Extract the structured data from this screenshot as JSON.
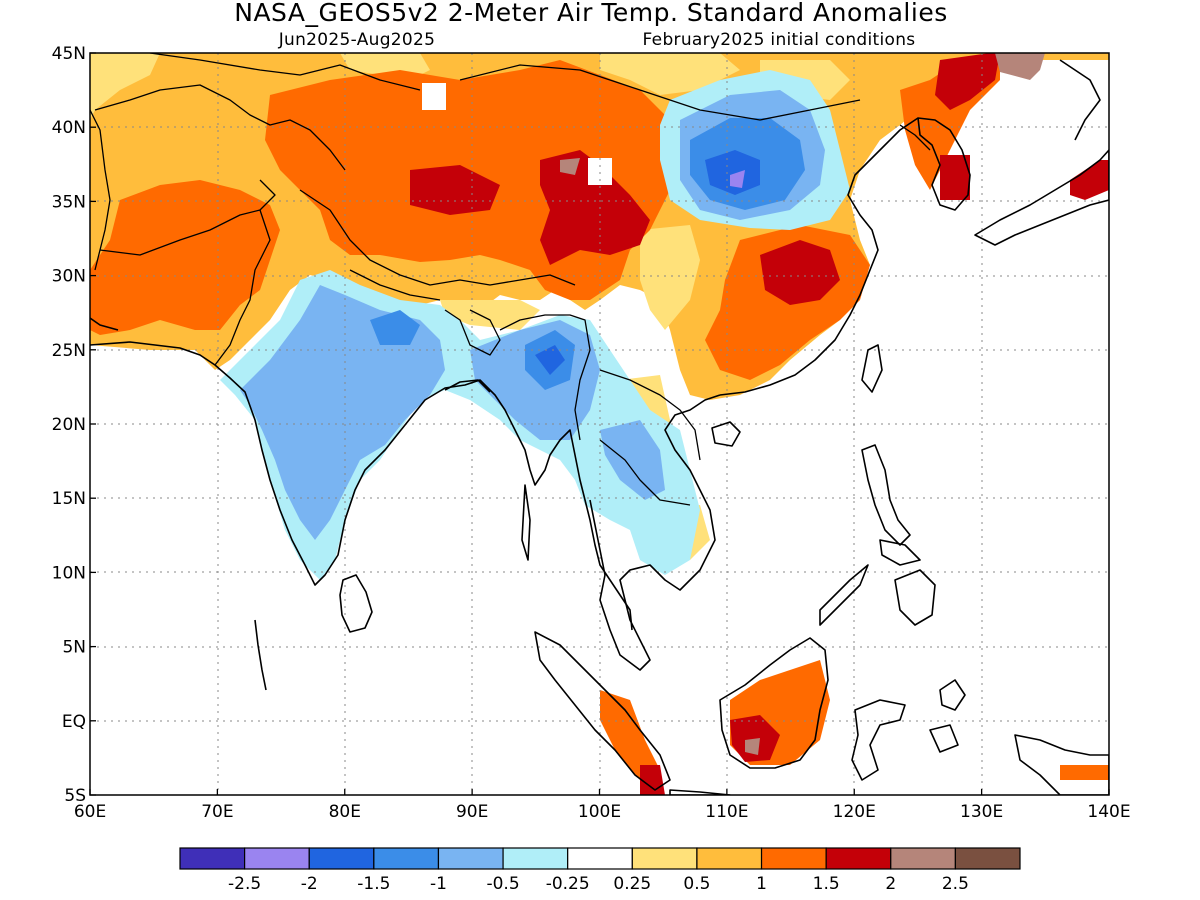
{
  "title": "NASA_GEOS5v2 2-Meter Air Temp. Standard Anomalies",
  "subtitle_left": "Jun2025-Aug2025",
  "subtitle_right": "February2025 initial conditions",
  "map": {
    "lon_range": [
      60,
      140
    ],
    "lat_range": [
      -5,
      45
    ],
    "x_ticks": [
      {
        "lon": 60,
        "label": "60E"
      },
      {
        "lon": 70,
        "label": "70E"
      },
      {
        "lon": 80,
        "label": "80E"
      },
      {
        "lon": 90,
        "label": "90E"
      },
      {
        "lon": 100,
        "label": "100E"
      },
      {
        "lon": 110,
        "label": "110E"
      },
      {
        "lon": 120,
        "label": "120E"
      },
      {
        "lon": 130,
        "label": "130E"
      },
      {
        "lon": 140,
        "label": "140E"
      }
    ],
    "y_ticks": [
      {
        "lat": 45,
        "label": "45N"
      },
      {
        "lat": 40,
        "label": "40N"
      },
      {
        "lat": 35,
        "label": "35N"
      },
      {
        "lat": 30,
        "label": "30N"
      },
      {
        "lat": 25,
        "label": "25N"
      },
      {
        "lat": 20,
        "label": "20N"
      },
      {
        "lat": 15,
        "label": "15N"
      },
      {
        "lat": 10,
        "label": "10N"
      },
      {
        "lat": 5,
        "label": "5N"
      },
      {
        "lat": 0,
        "label": "EQ"
      },
      {
        "lat": -5,
        "label": "5S"
      }
    ],
    "colors": {
      "lt_m2_5": "#3f2fb8",
      "m2_5_m2": "#9a84f0",
      "m2_m1_5": "#2065e0",
      "m1_5_m1": "#3b8de8",
      "m1_m0_5": "#79b4f2",
      "m0_5_m0_25": "#b0eef8",
      "m0_25_0_25": "#ffffff",
      "0_25_0_5": "#ffe17a",
      "0_5_1": "#ffbd3c",
      "1_1_5": "#ff6a00",
      "1_5_2": "#c40008",
      "2_2_5": "#b5857a",
      "gt_2_5": "#7a5040"
    }
  },
  "colorbar": {
    "bins": [
      "#3f2fb8",
      "#9a84f0",
      "#2065e0",
      "#3b8de8",
      "#79b4f2",
      "#b0eef8",
      "#ffffff",
      "#ffe17a",
      "#ffbd3c",
      "#ff6a00",
      "#c40008",
      "#b5857a",
      "#7a5040"
    ],
    "labels": [
      "-2.5",
      "-2",
      "-1.5",
      "-1",
      "-0.5",
      "-0.25",
      "0.25",
      "0.5",
      "1",
      "1.5",
      "2",
      "2.5"
    ]
  }
}
